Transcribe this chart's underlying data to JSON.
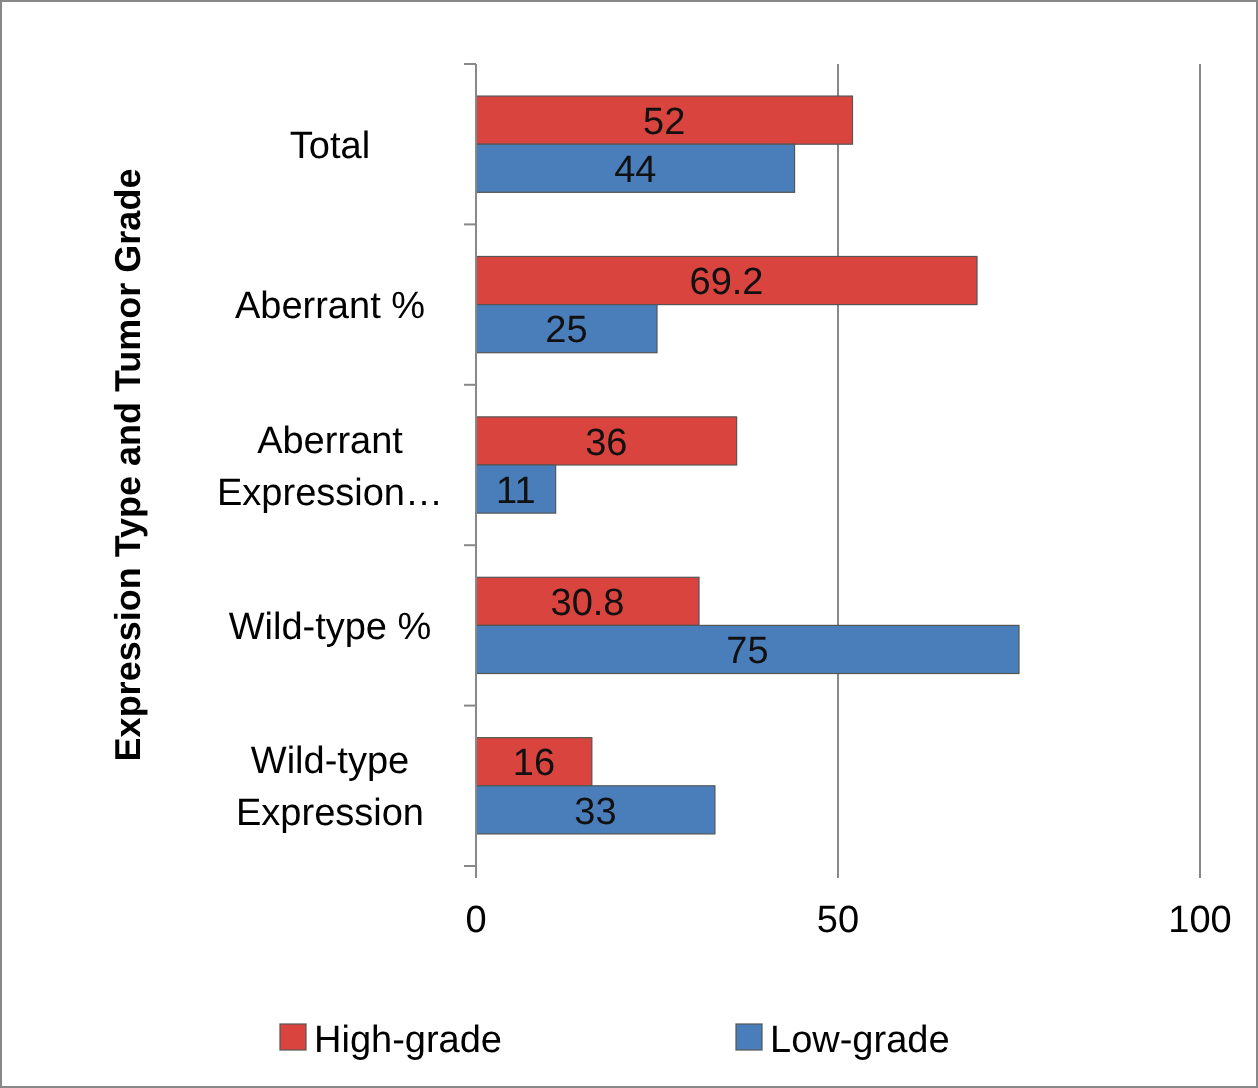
{
  "chart_data": {
    "type": "bar",
    "orientation": "horizontal",
    "ylabel": "Expression Type and Tumor Grade",
    "categories": [
      "Total",
      "Aberrant %",
      "Aberrant Expression…",
      "Wild-type %",
      "Wild-type Expression"
    ],
    "series": [
      {
        "name": "High-grade",
        "color": "#d9443f",
        "values": [
          52,
          69.2,
          36,
          30.8,
          16
        ]
      },
      {
        "name": "Low-grade",
        "color": "#4a7ebb",
        "values": [
          44,
          25,
          11,
          75,
          33
        ]
      }
    ],
    "xlim": [
      0,
      100
    ],
    "xticks": [
      0,
      50,
      100
    ],
    "grid": "x",
    "legend": "bottom",
    "data_labels": true
  }
}
